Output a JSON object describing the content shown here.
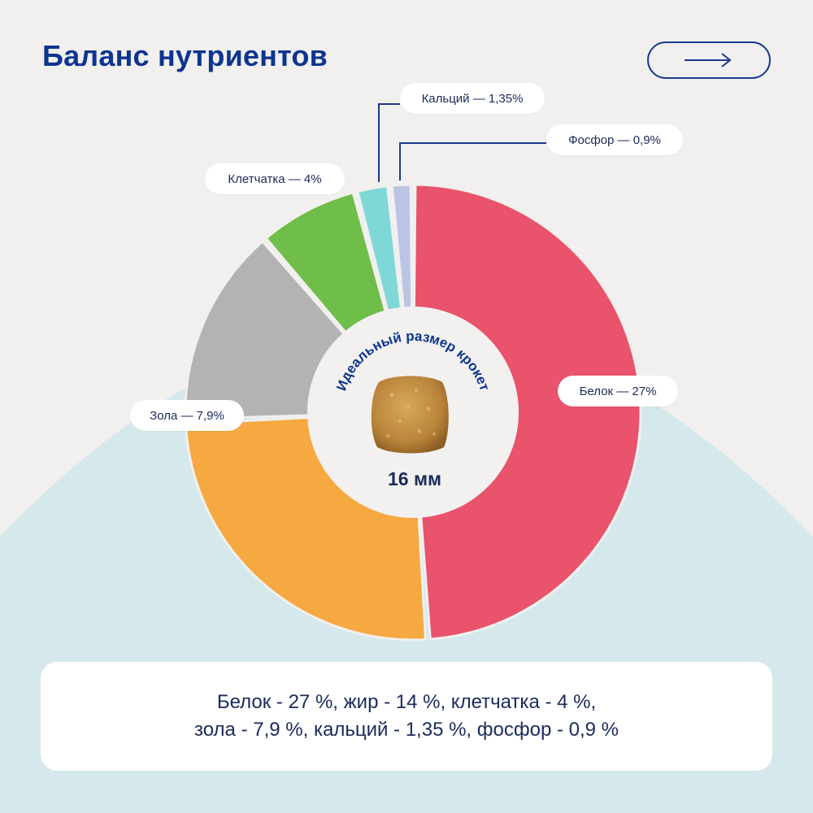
{
  "header": {
    "title": "Баланс нутриентов",
    "next_button_icon": "arrow-right-icon"
  },
  "chart_data": {
    "type": "pie",
    "donut": true,
    "slices": [
      {
        "label": "Белок — 27%",
        "name": "Белок",
        "value": 27,
        "color": "#e9536b"
      },
      {
        "label": "",
        "name": "жир",
        "value": 14,
        "color": "#f6a940"
      },
      {
        "label": "Зола — 7,9%",
        "name": "Зола",
        "value": 7.9,
        "color": "#b3b3b3"
      },
      {
        "label": "Клетчатка — 4%",
        "name": "Клетчатка",
        "value": 4,
        "color": "#6fbe4a"
      },
      {
        "label": "Кальций — 1,35%",
        "name": "Кальций",
        "value": 1.35,
        "color": "#7fd8d8"
      },
      {
        "label": "Фосфор — 0,9%",
        "name": "Фосфор",
        "value": 0.9,
        "color": "#bcc4e6"
      }
    ]
  },
  "center": {
    "curved_text": "Идеальный размер крокет",
    "size": "16 мм"
  },
  "summary": {
    "line1": "Белок - 27 %, жир - 14 %, клетчатка - 4 %,",
    "line2": "зола - 7,9 %, кальций - 1,35 %, фосфор - 0,9 %"
  },
  "colors": {
    "title": "#0d3590",
    "background": "#f1f0ef",
    "wave": "#d5e8ec",
    "text": "#1b2a5a"
  }
}
